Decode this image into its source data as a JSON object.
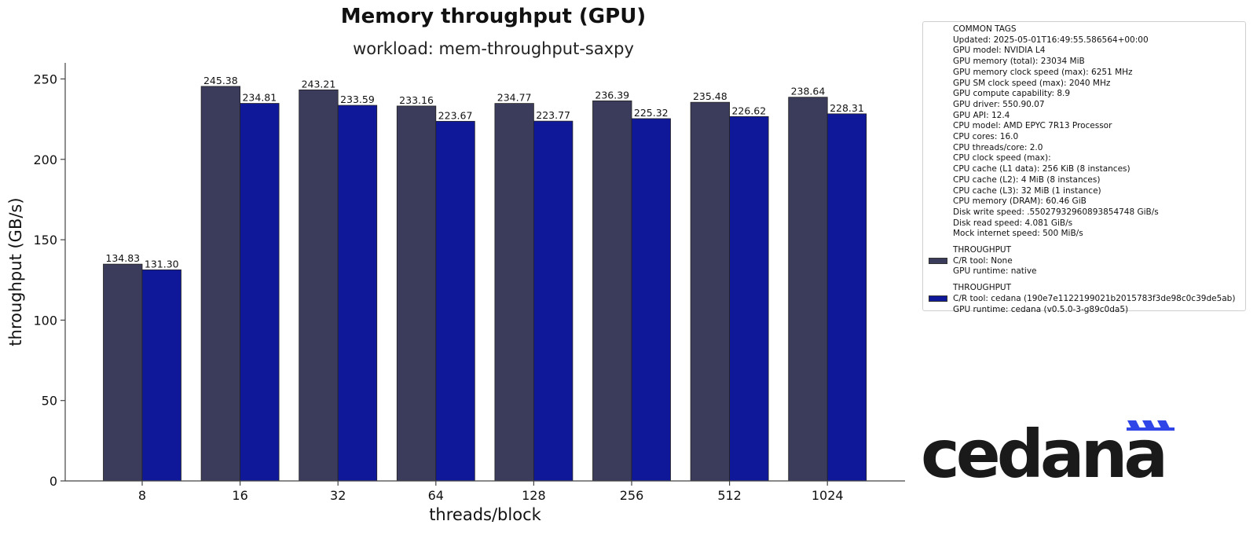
{
  "chart_data": {
    "type": "bar",
    "title": "Memory throughput (GPU)",
    "subtitle": "workload: mem-throughput-saxpy",
    "xlabel": "threads/block",
    "ylabel": "throughput (GB/s)",
    "categories": [
      "8",
      "16",
      "32",
      "64",
      "128",
      "256",
      "512",
      "1024"
    ],
    "ylim": [
      0,
      260
    ],
    "yticks": [
      0,
      50,
      100,
      150,
      200,
      250
    ],
    "grid": false,
    "legend_position": "top-right, outside plot",
    "series": [
      {
        "name": "THROUGHPUT",
        "color": "#3b3b5c",
        "values": [
          134.83,
          245.38,
          243.21,
          233.16,
          234.77,
          236.39,
          235.48,
          238.64
        ],
        "labels": [
          "134.83",
          "245.38",
          "243.21",
          "233.16",
          "234.77",
          "236.39",
          "235.48",
          "238.64"
        ]
      },
      {
        "name": "THROUGHPUT",
        "color": "#0f1899",
        "values": [
          131.3,
          234.81,
          233.59,
          223.67,
          223.77,
          225.32,
          226.62,
          228.31
        ],
        "labels": [
          "131.30",
          "234.81",
          "233.59",
          "223.67",
          "223.77",
          "225.32",
          "226.62",
          "228.31"
        ]
      }
    ]
  },
  "legend": {
    "common_tags": [
      "COMMON TAGS",
      "Updated: 2025-05-01T16:49:55.586564+00:00",
      "GPU model: NVIDIA L4",
      "GPU memory (total): 23034 MiB",
      "GPU memory clock speed (max): 6251 MHz",
      "GPU SM clock speed (max): 2040 MHz",
      "GPU compute capability: 8.9",
      "GPU driver: 550.90.07",
      "GPU API: 12.4",
      "CPU model: AMD EPYC 7R13 Processor",
      "CPU cores: 16.0",
      "CPU threads/core: 2.0",
      "CPU clock speed (max):",
      "CPU cache (L1 data): 256 KiB (8 instances)",
      "CPU cache (L2): 4 MiB (8 instances)",
      "CPU cache (L3): 32 MiB (1 instance)",
      "CPU memory (DRAM): 60.46 GiB",
      "Disk write speed: .55027932960893854748 GiB/s",
      "Disk read speed: 4.081 GiB/s",
      "Mock internet speed: 500 MiB/s"
    ],
    "entries": [
      {
        "color": "#3b3b5c",
        "lines": [
          "THROUGHPUT",
          "C/R tool: None",
          "GPU runtime: native"
        ]
      },
      {
        "color": "#0f1899",
        "lines": [
          "THROUGHPUT",
          "C/R tool: cedana (190e7e1122199021b2015783f3de98c0c39de5ab)",
          "GPU runtime: cedana (v0.5.0-3-g89c0da5)"
        ]
      }
    ]
  },
  "logo": {
    "text": "cedana",
    "accent_color": "#2f45e8",
    "text_color": "#1a1a1a"
  }
}
